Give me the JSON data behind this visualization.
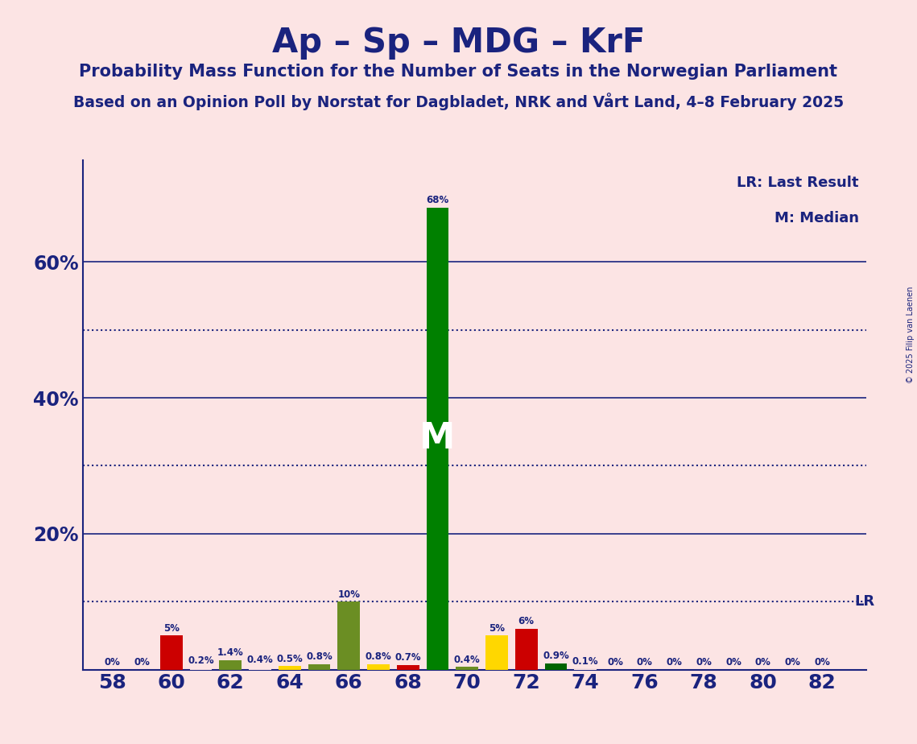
{
  "title": "Ap – Sp – MDG – KrF",
  "subtitle1": "Probability Mass Function for the Number of Seats in the Norwegian Parliament",
  "subtitle2": "Based on an Opinion Poll by Norstat for Dagbladet, NRK and Vårt Land, 4–8 February 2025",
  "copyright": "© 2025 Filip van Laenen",
  "background_color": "#fce4e4",
  "title_color": "#1a237e",
  "text_color": "#1a237e",
  "lr_value": 0.1,
  "lr_label": "LR",
  "median_seat": 69,
  "median_label": "M",
  "legend_lr": "LR: Last Result",
  "legend_m": "M: Median",
  "seats": [
    58,
    59,
    60,
    61,
    62,
    63,
    64,
    65,
    66,
    67,
    68,
    69,
    70,
    71,
    72,
    73,
    74,
    75,
    76,
    77,
    78,
    79,
    80,
    81,
    82
  ],
  "probabilities": [
    0.0,
    0.0,
    0.05,
    0.002,
    0.014,
    0.004,
    0.005,
    0.008,
    0.1,
    0.008,
    0.007,
    0.68,
    0.004,
    0.05,
    0.06,
    0.009,
    0.001,
    0.0,
    0.0,
    0.0,
    0.0,
    0.0,
    0.0,
    0.0,
    0.0
  ],
  "bar_colors": [
    "#fce4e4",
    "#fce4e4",
    "#cc0000",
    "#fce4e4",
    "#6b8e23",
    "#fce4e4",
    "#ffd700",
    "#6b8e23",
    "#6b8e23",
    "#ffd700",
    "#cc0000",
    "#008000",
    "#6b8e23",
    "#ffd700",
    "#cc0000",
    "#006400",
    "#fce4e4",
    "#fce4e4",
    "#fce4e4",
    "#fce4e4",
    "#fce4e4",
    "#fce4e4",
    "#fce4e4",
    "#fce4e4",
    "#fce4e4"
  ],
  "pct_labels": [
    "0%",
    "0%",
    "5%",
    "0.2%",
    "1.4%",
    "0.4%",
    "0.5%",
    "0.8%",
    "10%",
    "0.8%",
    "0.7%",
    "68%",
    "0.4%",
    "5%",
    "6%",
    "0.9%",
    "0.1%",
    "0%",
    "0%",
    "0%",
    "0%",
    "0%",
    "0%",
    "0%",
    "0%"
  ],
  "x_tick_positions": [
    58,
    60,
    62,
    64,
    66,
    68,
    70,
    72,
    74,
    76,
    78,
    80,
    82
  ],
  "ylim_max": 0.75,
  "solid_gridlines": [
    0.2,
    0.4,
    0.6
  ],
  "dotted_gridlines": [
    0.1,
    0.3,
    0.5
  ],
  "ytick_positions": [
    0.2,
    0.4,
    0.6
  ],
  "ytick_labels": [
    "20%",
    "40%",
    "60%"
  ]
}
